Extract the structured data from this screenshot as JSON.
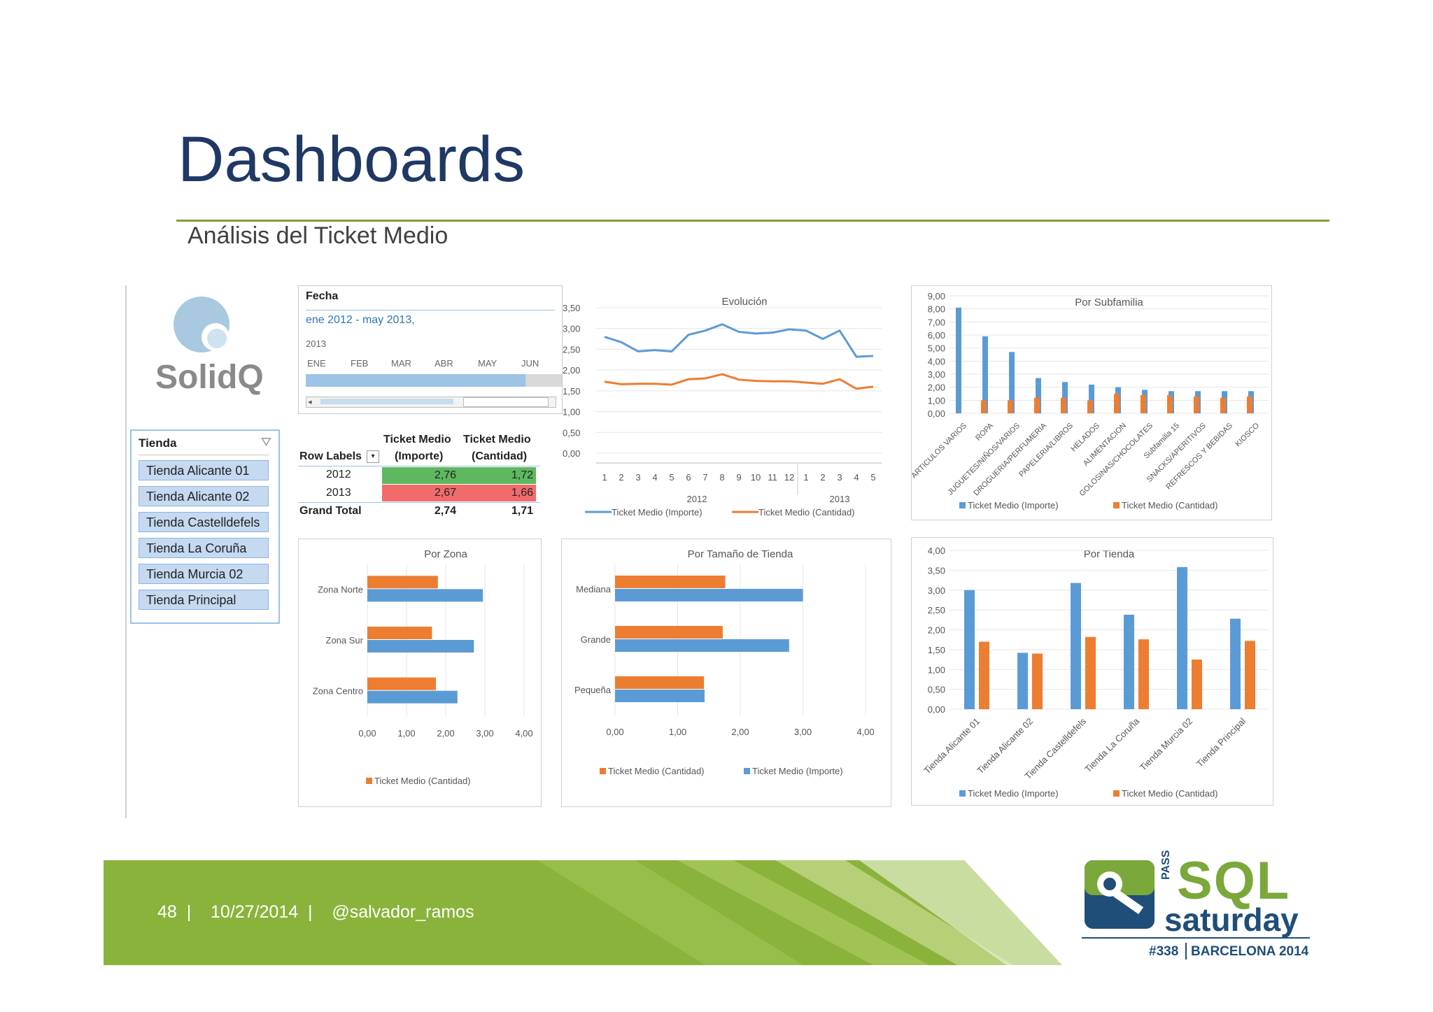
{
  "slide": {
    "title": "Dashboards",
    "subtitle": "Análisis del Ticket Medio"
  },
  "logo": {
    "text": "SolidQ"
  },
  "slicer": {
    "header": "Tienda",
    "items": [
      "Tienda Alicante 01",
      "Tienda Alicante 02",
      "Tienda Castelldefels",
      "Tienda La Coruña",
      "Tienda Murcia 02",
      "Tienda Principal"
    ]
  },
  "timeline": {
    "title": "Fecha",
    "range": "ene 2012 - may 2013,",
    "year": "2013",
    "months": [
      "ENE",
      "FEB",
      "MAR",
      "ABR",
      "MAY",
      "JUN"
    ]
  },
  "pivot": {
    "row_labels": "Row Labels",
    "col1": [
      "Ticket Medio",
      "(Importe)"
    ],
    "col2": [
      "Ticket Medio",
      "(Cantidad)"
    ],
    "rows": [
      {
        "label": "2012",
        "importe": "2,76",
        "cantidad": "1,72"
      },
      {
        "label": "2013",
        "importe": "2,67",
        "cantidad": "1,66"
      }
    ],
    "total": {
      "label": "Grand Total",
      "importe": "2,74",
      "cantidad": "1,71"
    },
    "colors": {
      "good": "#5fb85f",
      "bad": "#f26b6b"
    }
  },
  "chart_data": [
    {
      "id": "evolucion",
      "type": "line",
      "title": "Evolución",
      "categories": [
        "1",
        "2",
        "3",
        "4",
        "5",
        "6",
        "7",
        "8",
        "9",
        "10",
        "11",
        "12",
        "1",
        "2",
        "3",
        "4",
        "5"
      ],
      "groups": [
        "2012",
        "2013"
      ],
      "ylim": [
        0,
        3.5
      ],
      "yticks": [
        "0,00",
        "0,50",
        "1,00",
        "1,50",
        "2,00",
        "2,50",
        "3,00",
        "3,50"
      ],
      "series": [
        {
          "name": "Ticket Medio (Importe)",
          "color": "#5b9bd5",
          "values": [
            2.8,
            2.67,
            2.45,
            2.48,
            2.45,
            2.85,
            2.95,
            3.1,
            2.92,
            2.88,
            2.9,
            2.98,
            2.95,
            2.75,
            2.95,
            2.32,
            2.34
          ]
        },
        {
          "name": "Ticket Medio (Cantidad)",
          "color": "#ed7d31",
          "values": [
            1.72,
            1.66,
            1.67,
            1.67,
            1.65,
            1.78,
            1.8,
            1.9,
            1.77,
            1.74,
            1.73,
            1.73,
            1.7,
            1.67,
            1.78,
            1.55,
            1.6
          ]
        }
      ]
    },
    {
      "id": "subfamilia",
      "type": "bar",
      "title": "Por Subfamilia",
      "categories": [
        "ARTICULOS VARIOS",
        "ROPA",
        "JUGUETES/NIÑOS/VARIOS",
        "DROGUERIA/PERFUMERIA",
        "PAPELERIA/LIBROS",
        "HELADOS",
        "ALIMENTACION",
        "GOLOSINAS/CHOCOLATES",
        "Subfamilia 15",
        "SNACKS/APERITIVOS",
        "REFRESCOS Y BEBIDAS",
        "KIOSCO"
      ],
      "ylim": [
        0,
        9
      ],
      "yticks": [
        "0,00",
        "1,00",
        "2,00",
        "3,00",
        "4,00",
        "5,00",
        "6,00",
        "7,00",
        "8,00",
        "9,00"
      ],
      "series": [
        {
          "name": "Ticket Medio (Importe)",
          "color": "#5b9bd5",
          "values": [
            8.1,
            5.9,
            4.7,
            2.7,
            2.4,
            2.2,
            2.0,
            1.8,
            1.7,
            1.7,
            1.7,
            1.7
          ]
        },
        {
          "name": "Ticket Medio (Cantidad)",
          "color": "#ed7d31",
          "values": [
            1.0,
            1.0,
            1.2,
            1.2,
            1.0,
            1.5,
            1.4,
            1.4,
            1.3,
            1.2,
            1.3,
            1.2
          ]
        }
      ]
    },
    {
      "id": "zona",
      "type": "bar-horizontal",
      "title": "Por Zona",
      "categories": [
        "Zona Norte",
        "Zona Sur",
        "Zona Centro"
      ],
      "xlim": [
        0,
        4
      ],
      "xticks": [
        "0,00",
        "1,00",
        "2,00",
        "3,00",
        "4,00"
      ],
      "series": [
        {
          "name": "Ticket Medio (Cantidad)",
          "color": "#ed7d31",
          "values": [
            1.8,
            1.65,
            1.75
          ]
        },
        {
          "name": "",
          "color": "#5b9bd5",
          "values": [
            2.95,
            2.72,
            2.3
          ]
        }
      ],
      "legend": [
        "Ticket Medio (Cantidad)"
      ]
    },
    {
      "id": "tamano",
      "type": "bar-horizontal",
      "title": "Por Tamaño de Tienda",
      "categories": [
        "Mediana",
        "Grande",
        "Pequeña"
      ],
      "xlim": [
        0,
        4
      ],
      "xticks": [
        "0,00",
        "1,00",
        "2,00",
        "3,00",
        "4,00"
      ],
      "series": [
        {
          "name": "Ticket Medio (Cantidad)",
          "color": "#ed7d31",
          "values": [
            1.76,
            1.72,
            1.42
          ]
        },
        {
          "name": "Ticket Medio (Importe)",
          "color": "#5b9bd5",
          "values": [
            3.0,
            2.78,
            1.43
          ]
        }
      ]
    },
    {
      "id": "tienda",
      "type": "bar",
      "title": "Por Tienda",
      "categories": [
        "Tienda Alicante 01",
        "Tienda Alicante 02",
        "Tienda Castelldefels",
        "Tienda La Coruña",
        "Tienda Murcia 02",
        "Tienda Principal"
      ],
      "ylim": [
        0,
        4
      ],
      "yticks": [
        "0,00",
        "0,50",
        "1,00",
        "1,50",
        "2,00",
        "2,50",
        "3,00",
        "3,50",
        "4,00"
      ],
      "series": [
        {
          "name": "Ticket Medio (Importe)",
          "color": "#5b9bd5",
          "values": [
            3.0,
            1.42,
            3.18,
            2.38,
            3.58,
            2.28
          ]
        },
        {
          "name": "Ticket Medio (Cantidad)",
          "color": "#ed7d31",
          "values": [
            1.7,
            1.4,
            1.82,
            1.76,
            1.25,
            1.72
          ]
        }
      ]
    }
  ],
  "footer": {
    "page": "48",
    "date": "10/27/2014",
    "handle": "@salvador_ramos",
    "sep": "|"
  },
  "sqlsat": {
    "pass": "PASS",
    "sql": "SQL",
    "saturday": "saturday",
    "number": "#338",
    "city": "BARCELONA 2014"
  }
}
